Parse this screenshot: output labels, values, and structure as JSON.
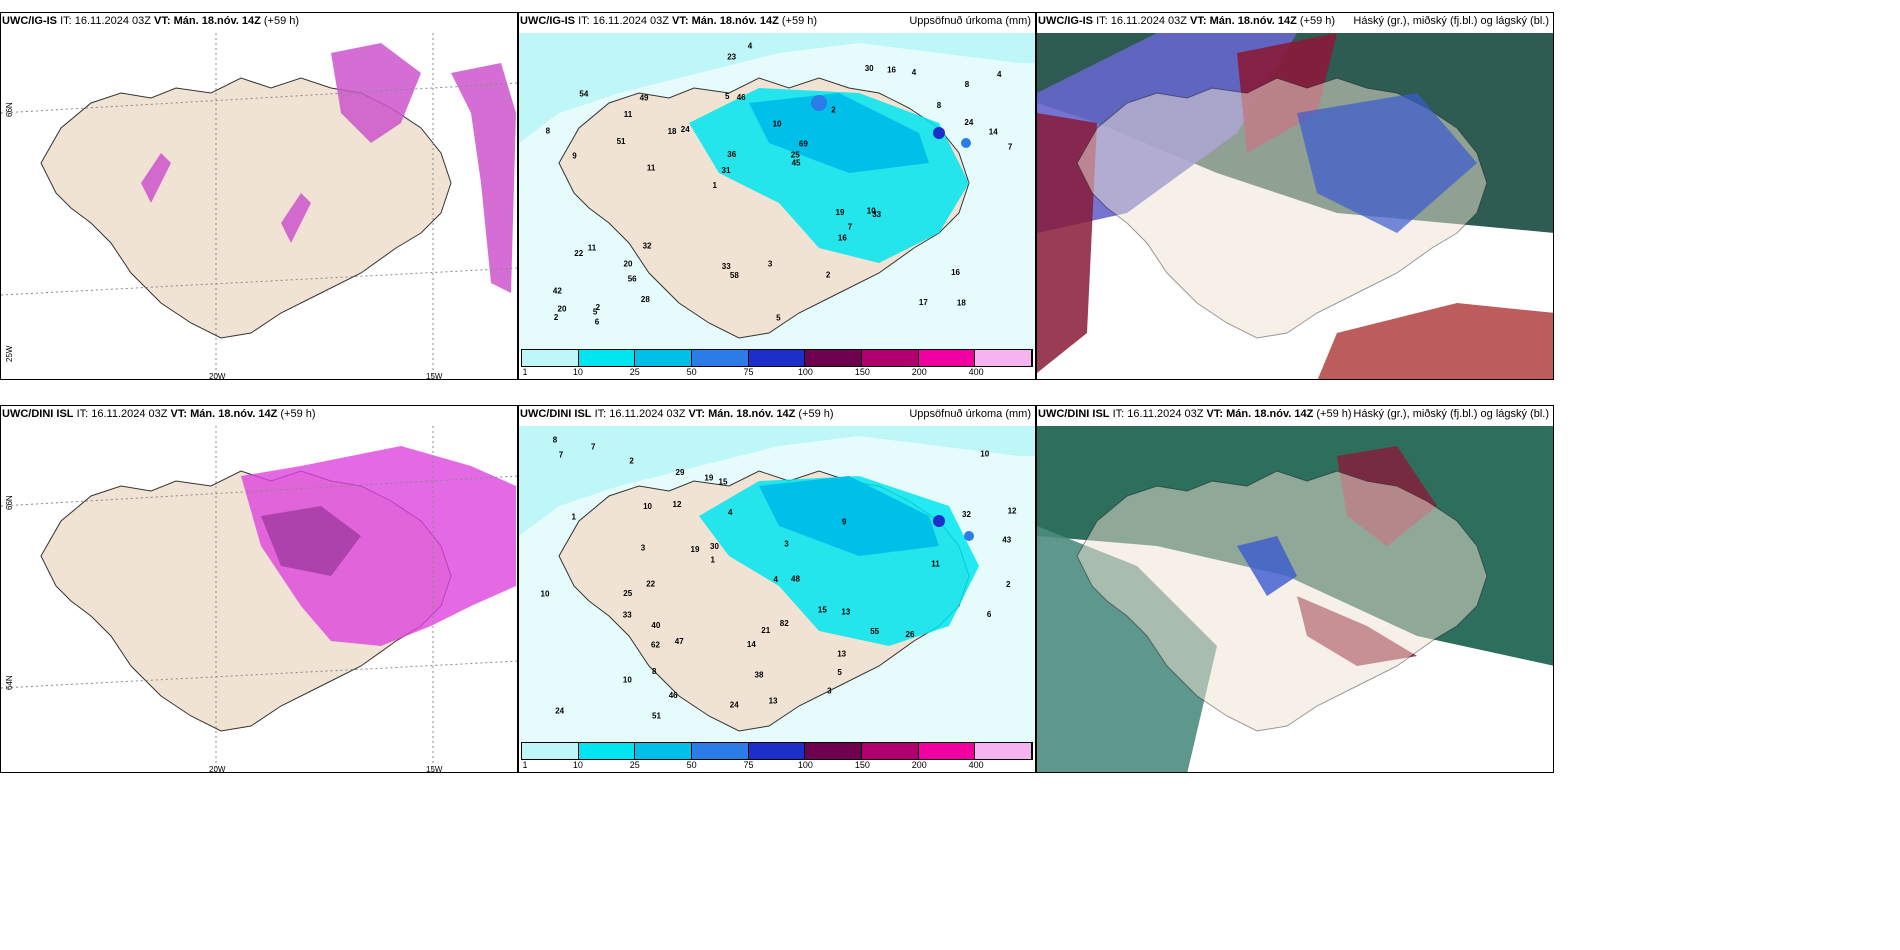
{
  "rows": [
    {
      "model": "UWC/IG-IS",
      "it": "IT: 16.11.2024 03Z",
      "vt": "VT: Mán. 18.nóv. 14Z",
      "lead": "(+59 h)"
    },
    {
      "model": "UWC/DINI ISL",
      "it": "IT: 16.11.2024 03Z",
      "vt": "VT: Mán. 18.nóv. 14Z",
      "lead": "(+59 h)"
    }
  ],
  "labels": {
    "precip": "Uppsöfnuð úrkoma (mm)",
    "clouds": "Háský (gr.), miðský (fj.bl.) og lágský (bl.)",
    "lat_66": "66N",
    "lat_64": "64N",
    "lon_20": "20W",
    "lon_15": "15W",
    "lon_25": "25W",
    "lat_66_r": "66N",
    "lat_64_r": "64N"
  },
  "colorbar": {
    "colors": [
      "#bff6f8",
      "#00e5f0",
      "#00bfe8",
      "#2b7ce6",
      "#1c2fc8",
      "#6e0050",
      "#b0006e",
      "#f000a0",
      "#f5b4f0"
    ],
    "ticks": [
      "1",
      "10",
      "25",
      "50",
      "75",
      "100",
      "150",
      "200",
      "400"
    ]
  },
  "precip_values": {
    "top": [
      {
        "v": "18"
      },
      {
        "v": "9"
      },
      {
        "v": "8"
      },
      {
        "v": "1"
      },
      {
        "v": "2"
      },
      {
        "v": "2"
      },
      {
        "v": "5"
      },
      {
        "v": "10"
      },
      {
        "v": "11"
      },
      {
        "v": "24"
      },
      {
        "v": "42"
      },
      {
        "v": "56"
      },
      {
        "v": "46"
      },
      {
        "v": "69"
      },
      {
        "v": "33"
      },
      {
        "v": "54"
      },
      {
        "v": "23"
      },
      {
        "v": "7"
      },
      {
        "v": "19"
      },
      {
        "v": "24"
      },
      {
        "v": "31"
      },
      {
        "v": "33"
      },
      {
        "v": "36"
      },
      {
        "v": "49"
      },
      {
        "v": "30"
      },
      {
        "v": "32"
      },
      {
        "v": "17"
      },
      {
        "v": "16"
      },
      {
        "v": "10"
      },
      {
        "v": "5"
      },
      {
        "v": "18"
      },
      {
        "v": "51"
      },
      {
        "v": "16"
      },
      {
        "v": "28"
      },
      {
        "v": "14"
      },
      {
        "v": "25"
      },
      {
        "v": "20"
      },
      {
        "v": "58"
      },
      {
        "v": "45"
      },
      {
        "v": "22"
      },
      {
        "v": "8"
      },
      {
        "v": "4"
      },
      {
        "v": "7"
      },
      {
        "v": "2"
      },
      {
        "v": "20"
      },
      {
        "v": "6"
      },
      {
        "v": "2"
      },
      {
        "v": "3"
      },
      {
        "v": "4"
      },
      {
        "v": "4"
      },
      {
        "v": "11"
      },
      {
        "v": "8"
      },
      {
        "v": "11"
      },
      {
        "v": "16"
      },
      {
        "v": "5"
      }
    ],
    "bottom": [
      {
        "v": "7"
      },
      {
        "v": "8"
      },
      {
        "v": "10"
      },
      {
        "v": "10"
      },
      {
        "v": "12"
      },
      {
        "v": "13"
      },
      {
        "v": "15"
      },
      {
        "v": "47"
      },
      {
        "v": "24"
      },
      {
        "v": "55"
      },
      {
        "v": "62"
      },
      {
        "v": "48"
      },
      {
        "v": "51"
      },
      {
        "v": "33"
      },
      {
        "v": "21"
      },
      {
        "v": "19"
      },
      {
        "v": "14"
      },
      {
        "v": "10"
      },
      {
        "v": "12"
      },
      {
        "v": "30"
      },
      {
        "v": "43"
      },
      {
        "v": "38"
      },
      {
        "v": "46"
      },
      {
        "v": "22"
      },
      {
        "v": "25"
      },
      {
        "v": "82"
      },
      {
        "v": "40"
      },
      {
        "v": "26"
      },
      {
        "v": "24"
      },
      {
        "v": "19"
      },
      {
        "v": "15"
      },
      {
        "v": "29"
      },
      {
        "v": "32"
      },
      {
        "v": "6"
      },
      {
        "v": "4"
      },
      {
        "v": "3"
      },
      {
        "v": "2"
      },
      {
        "v": "1"
      },
      {
        "v": "5"
      },
      {
        "v": "9"
      },
      {
        "v": "10"
      },
      {
        "v": "13"
      },
      {
        "v": "13"
      },
      {
        "v": "4"
      },
      {
        "v": "7"
      },
      {
        "v": "3"
      },
      {
        "v": "8"
      },
      {
        "v": "11"
      },
      {
        "v": "3"
      },
      {
        "v": "1"
      },
      {
        "v": "2"
      }
    ]
  }
}
